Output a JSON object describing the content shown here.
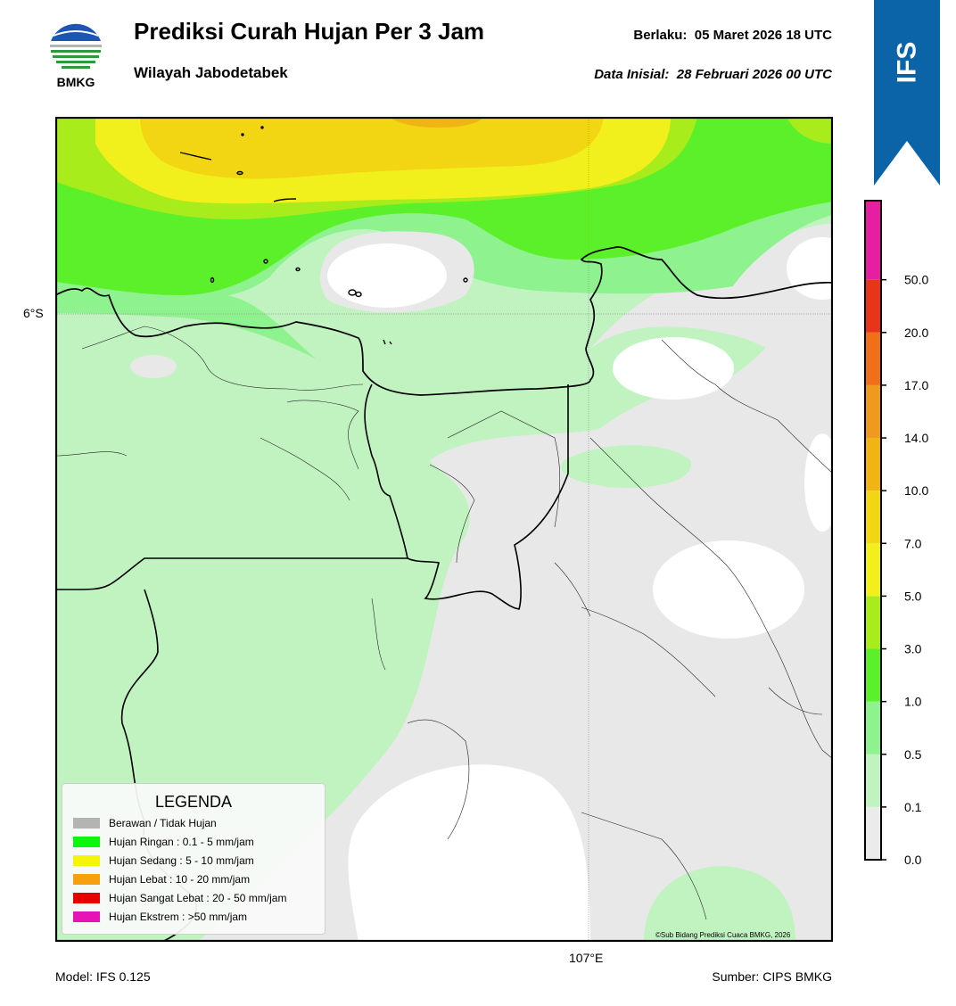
{
  "header": {
    "logo_text": "BMKG",
    "title": "Prediksi Curah Hujan Per 3 Jam",
    "subtitle": "Wilayah Jabodetabek",
    "valid_label": "Berlaku:",
    "valid_value": "05 Maret 2026 18 UTC",
    "initial_label": "Data Inisial:",
    "initial_value": "28 Februari 2026 00 UTC",
    "badge": "IFS"
  },
  "map": {
    "lat_label": "6°S",
    "lon_label": "107°E",
    "copyright": "©Sub Bidang Prediksi Cuaca BMKG, 2026"
  },
  "colorbar": {
    "ticks": [
      "0.0",
      "0.1",
      "0.5",
      "1.0",
      "3.0",
      "5.0",
      "7.0",
      "10.0",
      "14.0",
      "17.0",
      "20.0",
      "50.0"
    ],
    "colors": [
      "#ebebeb",
      "#c1f3c1",
      "#8ef28e",
      "#5cf02a",
      "#a8ec1c",
      "#f1f01c",
      "#f2d614",
      "#f0b414",
      "#ef9a1e",
      "#ef7018",
      "#e83418",
      "#e81ea2"
    ]
  },
  "legend": {
    "title": "LEGENDA",
    "items": [
      {
        "label": "Berawan / Tidak Hujan",
        "color": "#b4b4b4"
      },
      {
        "label": "Hujan Ringan : 0.1 - 5 mm/jam",
        "color": "#0cf50c"
      },
      {
        "label": "Hujan Sedang : 5 - 10 mm/jam",
        "color": "#f5f50c"
      },
      {
        "label": "Hujan Lebat : 10 - 20 mm/jam",
        "color": "#f5a00c"
      },
      {
        "label": "Hujan Sangat Lebat : 20 - 50 mm/jam",
        "color": "#e60000"
      },
      {
        "label": "Hujan Ekstrem : >50 mm/jam",
        "color": "#e614b4"
      }
    ]
  },
  "footer": {
    "model": "Model: IFS 0.125",
    "source": "Sumber: CIPS BMKG"
  }
}
